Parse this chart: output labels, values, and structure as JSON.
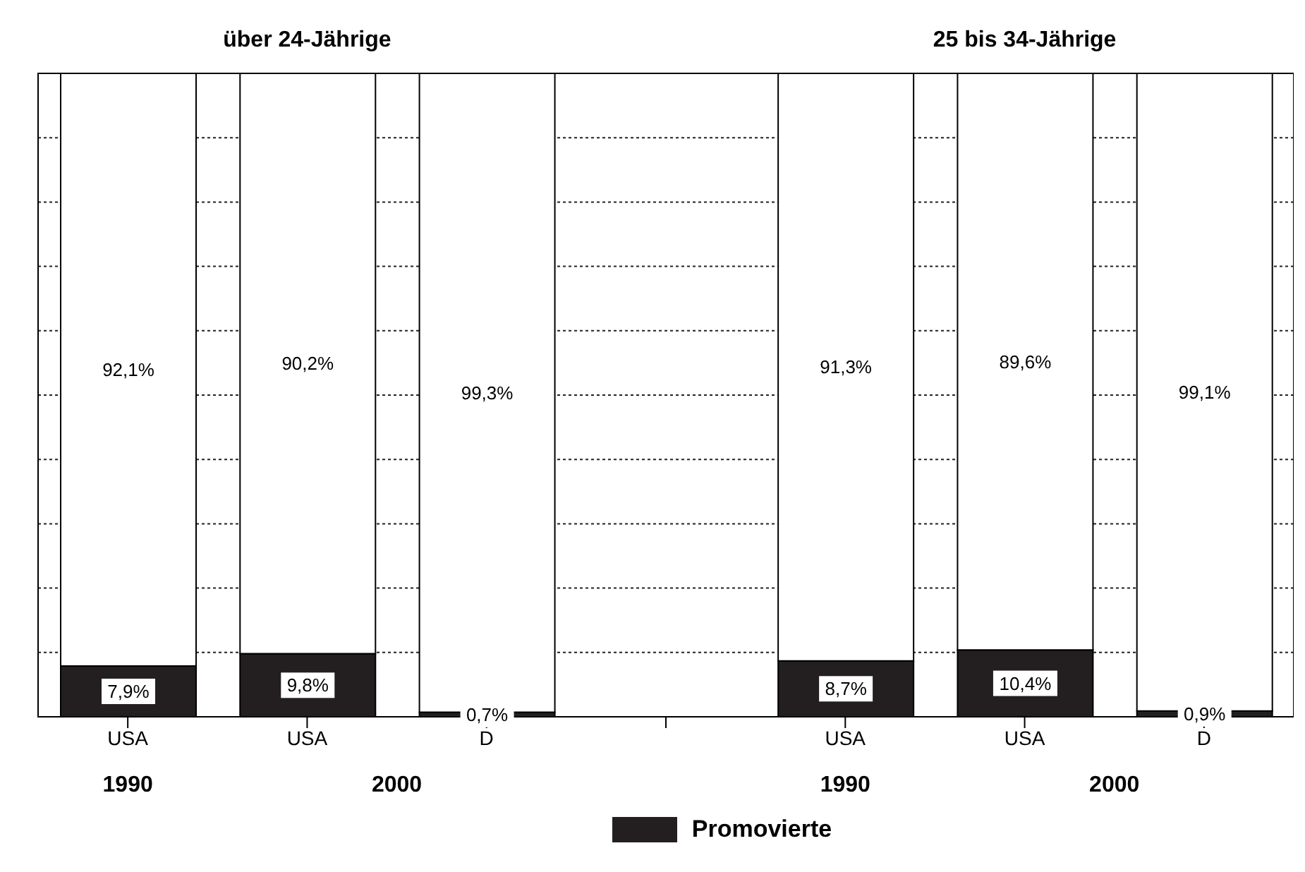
{
  "chart_data": {
    "type": "bar",
    "stacked": true,
    "categories": [
      "USA",
      "USA",
      "D",
      null,
      "USA",
      "USA",
      "D"
    ],
    "series": [
      {
        "name": "Promovierte",
        "color": "#231f20",
        "values": [
          7.9,
          9.8,
          0.7,
          null,
          8.7,
          10.4,
          0.9
        ],
        "value_labels": [
          "7,9%",
          "9,8%",
          "0,7%",
          null,
          "8,7%",
          "10,4%",
          "0,9%"
        ]
      },
      {
        "color": "#ffffff",
        "values": [
          92.1,
          90.2,
          99.3,
          null,
          91.3,
          89.6,
          99.1
        ],
        "value_labels": [
          "92,1%",
          "90,2%",
          "99,3%",
          null,
          "91,3%",
          "89,6%",
          "99,1%"
        ]
      }
    ],
    "ylim": [
      0,
      100
    ],
    "yticks": [
      {
        "value": 0,
        "label": null
      },
      {
        "value": 10,
        "label": null
      },
      {
        "value": 20,
        "label": null
      },
      {
        "value": 30,
        "label": null
      },
      {
        "value": 40,
        "label": null
      },
      {
        "value": 50,
        "label": null
      },
      {
        "value": 60,
        "label": null
      },
      {
        "value": 70,
        "label": null
      },
      {
        "value": 80,
        "label": null
      },
      {
        "value": 90,
        "label": null
      },
      {
        "value": 100,
        "label": null
      }
    ],
    "tick_labels": "x",
    "grid": "y",
    "legend": "bottom",
    "annotations": [
      "über 24-Jährige",
      "25 bis 34-Jährige",
      "1990",
      "2000",
      "1990",
      "2000"
    ]
  }
}
